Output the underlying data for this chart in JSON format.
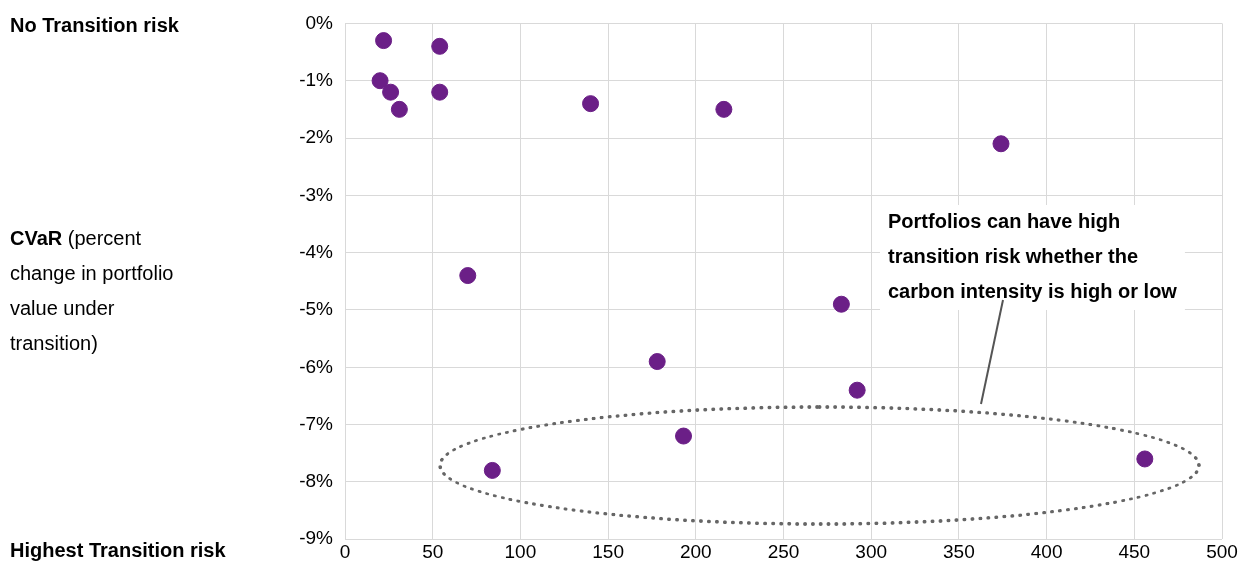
{
  "chart_data": {
    "type": "scatter",
    "x": [
      20,
      22,
      26,
      31,
      54,
      54,
      140,
      216,
      374,
      70,
      283,
      178,
      292,
      193,
      84,
      456
    ],
    "values": [
      -1.0,
      -0.3,
      -1.2,
      -1.5,
      -0.4,
      -1.2,
      -1.4,
      -1.5,
      -2.1,
      -4.4,
      -4.9,
      -5.9,
      -6.4,
      -7.2,
      -7.8,
      -7.6
    ],
    "color": "#6b1f87",
    "marker": "circle",
    "xlim": [
      0,
      500
    ],
    "xticks": [
      0,
      50,
      100,
      150,
      200,
      250,
      300,
      350,
      400,
      450,
      500
    ],
    "ylim": [
      -9,
      0
    ],
    "yticks": [
      {
        "value": 0,
        "label": "0%"
      },
      {
        "value": -1,
        "label": "-1%"
      },
      {
        "value": -2,
        "label": "-2%"
      },
      {
        "value": -3,
        "label": "-3%"
      },
      {
        "value": -4,
        "label": "-4%"
      },
      {
        "value": -5,
        "label": "-5%"
      },
      {
        "value": -6,
        "label": "-6%"
      },
      {
        "value": -7,
        "label": "-7%"
      },
      {
        "value": -8,
        "label": "-8%"
      },
      {
        "value": -9,
        "label": "-9%"
      }
    ],
    "grid": true,
    "annotations": [
      "No Transition risk",
      "CVaR (percent change in portfolio value under transition)",
      "Highest Transition risk",
      "Portfolios can have high transition risk whether the carbon intensity is high or low"
    ]
  }
}
